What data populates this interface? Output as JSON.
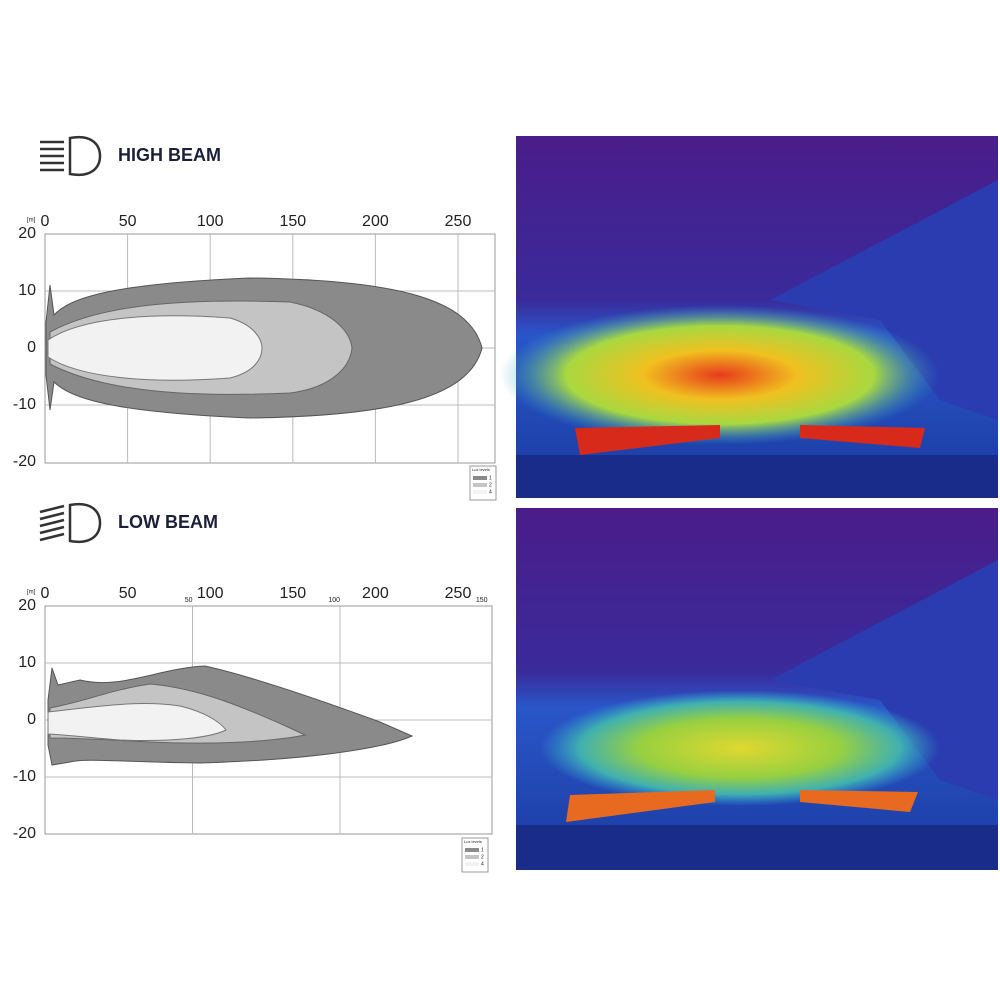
{
  "high_beam": {
    "title": "HIGH BEAM",
    "unit": "[m]",
    "xticks": [
      0,
      50,
      100,
      150,
      200,
      250
    ],
    "yticks": [
      20,
      10,
      0,
      -10,
      -20
    ],
    "legend": {
      "title": "Lux levels",
      "items": [
        1,
        2,
        4
      ]
    }
  },
  "low_beam": {
    "title": "LOW BEAM",
    "unit": "[m]",
    "xticks": [
      0,
      50,
      100,
      150,
      200,
      250
    ],
    "secondary_xticks": [
      50,
      100,
      150
    ],
    "yticks": [
      20,
      10,
      0,
      -10,
      -20
    ],
    "legend": {
      "title": "Lux levels",
      "items": [
        1,
        2,
        4
      ]
    }
  }
}
